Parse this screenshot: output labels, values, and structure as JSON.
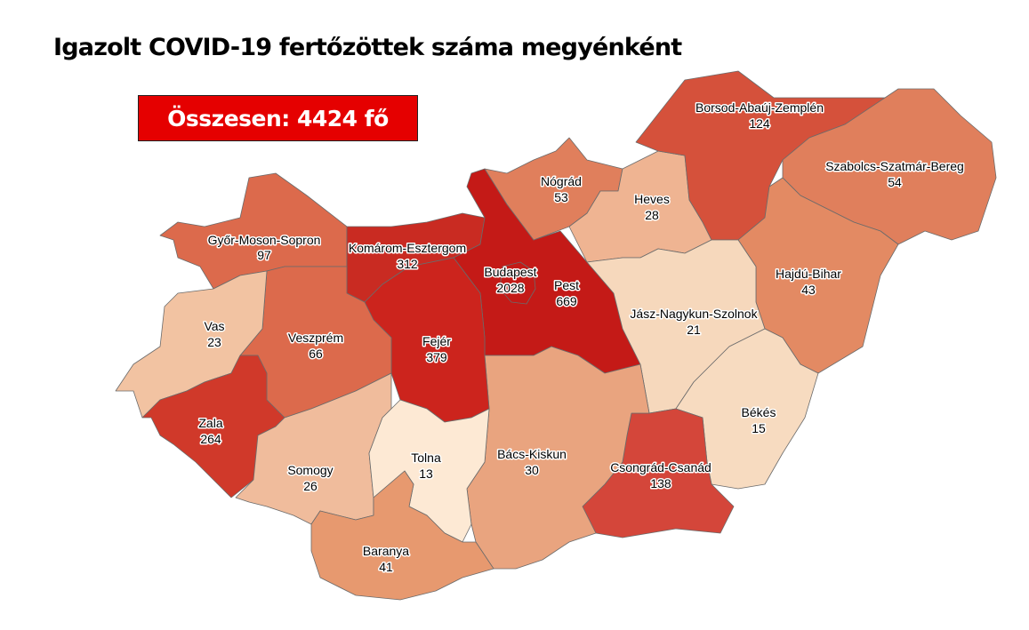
{
  "title": "Igazolt COVID-19 fertőzöttek száma megyénként",
  "total_label": "Összesen: 4424 fő",
  "total_box_color": "#e50000",
  "counties": [
    {
      "name": "Győr-Moson-Sopron",
      "value": "97",
      "color": "#dc6a4c"
    },
    {
      "name": "Komárom-Esztergom",
      "value": "312",
      "color": "#c92b22"
    },
    {
      "name": "Pest",
      "value": "669",
      "color": "#c41a17"
    },
    {
      "name": "Budapest",
      "value": "2028",
      "color": "#c41a17"
    },
    {
      "name": "Nógrád",
      "value": "53",
      "color": "#e07f5c"
    },
    {
      "name": "Heves",
      "value": "28",
      "color": "#efb492"
    },
    {
      "name": "Borsod-Abaúj-Zemplén",
      "value": "124",
      "color": "#d5513b"
    },
    {
      "name": "Szabolcs-Szatmár-Bereg",
      "value": "54",
      "color": "#e07f5c"
    },
    {
      "name": "Hajdú-Bihar",
      "value": "43",
      "color": "#e38a63"
    },
    {
      "name": "Jász-Nagykun-Szolnok",
      "value": "21",
      "color": "#f6d8bc"
    },
    {
      "name": "Békés",
      "value": "15",
      "color": "#f7dbc0"
    },
    {
      "name": "Csongrád-Csanád",
      "value": "138",
      "color": "#d4463a"
    },
    {
      "name": "Bács-Kiskun",
      "value": "30",
      "color": "#e9a47f"
    },
    {
      "name": "Fejér",
      "value": "379",
      "color": "#cc241d"
    },
    {
      "name": "Veszprém",
      "value": "66",
      "color": "#dc6a4c"
    },
    {
      "name": "Vas",
      "value": "23",
      "color": "#f2c3a2"
    },
    {
      "name": "Zala",
      "value": "264",
      "color": "#d0392a"
    },
    {
      "name": "Somogy",
      "value": "26",
      "color": "#f0bc9c"
    },
    {
      "name": "Tolna",
      "value": "13",
      "color": "#fde9d4"
    },
    {
      "name": "Baranya",
      "value": "41",
      "color": "#e7996f"
    }
  ]
}
